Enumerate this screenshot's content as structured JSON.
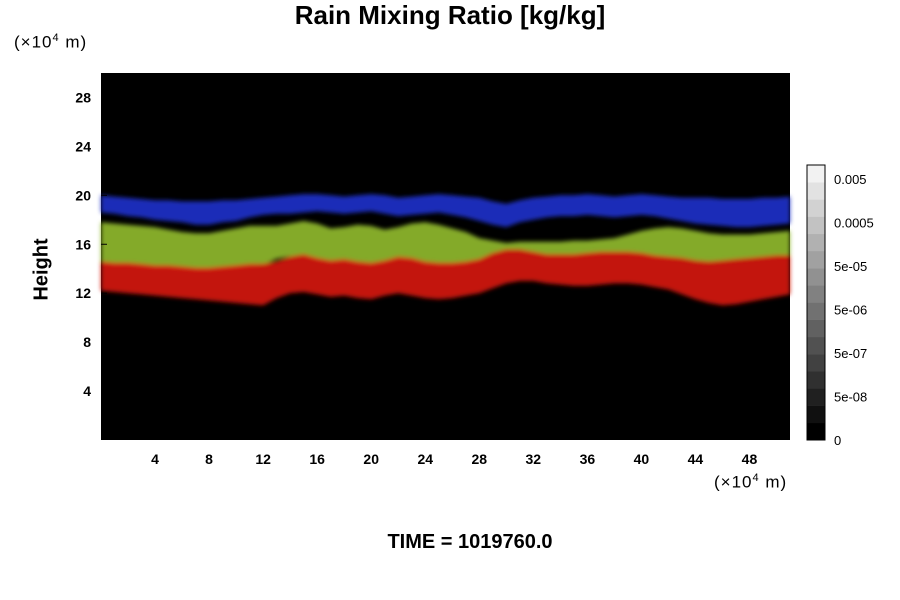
{
  "chart_data": {
    "type": "heatmap",
    "title": "Rain Mixing Ratio [kg/kg]",
    "ylabel": "Height",
    "y_unit": {
      "prefix": "(×10",
      "exp": "4",
      "suffix": " m)"
    },
    "x_unit": {
      "prefix": "(×10",
      "exp": "4",
      "suffix": " m)"
    },
    "xlim": [
      0,
      51
    ],
    "ylim": [
      0,
      30
    ],
    "x_ticks": [
      4,
      8,
      12,
      16,
      20,
      24,
      28,
      32,
      36,
      40,
      44,
      48
    ],
    "y_ticks": [
      4,
      8,
      12,
      16,
      20,
      24,
      28
    ],
    "background_color": "#000000",
    "layers": [
      {
        "color": "#1e2fc8",
        "bottom": [
          18.6,
          18.5,
          18.3,
          18.2,
          18.0,
          17.9,
          17.8,
          17.6,
          17.6,
          17.8,
          17.9,
          18.2,
          18.4,
          18.5,
          18.5,
          18.6,
          18.7,
          18.6,
          18.5,
          18.6,
          18.7,
          18.5,
          18.3,
          18.4,
          18.5,
          18.6,
          18.4,
          18.2,
          17.9,
          17.6,
          17.4,
          17.8,
          18.0,
          18.2,
          18.3,
          18.3,
          18.4,
          18.3,
          18.2,
          18.3,
          18.4,
          18.3,
          18.1,
          17.9,
          17.7,
          17.6,
          17.5,
          17.4,
          17.4,
          17.5,
          17.6,
          17.7
        ],
        "top": [
          20.0,
          19.9,
          19.8,
          19.7,
          19.6,
          19.6,
          19.5,
          19.5,
          19.5,
          19.6,
          19.6,
          19.7,
          19.8,
          19.9,
          20.0,
          20.1,
          20.1,
          20.0,
          19.9,
          20.0,
          20.1,
          20.0,
          19.8,
          19.9,
          20.0,
          20.1,
          20.0,
          19.9,
          19.8,
          19.5,
          19.3,
          19.6,
          19.8,
          19.9,
          20.0,
          20.0,
          20.1,
          20.0,
          19.9,
          20.0,
          20.1,
          20.0,
          19.9,
          19.8,
          19.8,
          19.8,
          19.7,
          19.7,
          19.7,
          19.8,
          19.8,
          19.9
        ]
      },
      {
        "color": "#8fb82a",
        "bottom": [
          14.3,
          14.2,
          14.2,
          14.1,
          14.0,
          14.0,
          13.9,
          13.8,
          13.8,
          13.9,
          14.0,
          14.1,
          14.3,
          14.8,
          15.0,
          15.0,
          14.6,
          14.4,
          14.5,
          14.3,
          14.2,
          14.4,
          14.7,
          14.6,
          14.3,
          14.2,
          14.2,
          14.3,
          14.6,
          15.2,
          15.5,
          15.5,
          15.2,
          15.0,
          15.0,
          15.0,
          15.1,
          15.2,
          15.2,
          15.2,
          15.1,
          14.9,
          14.8,
          14.8,
          14.6,
          14.5,
          14.6,
          14.7,
          14.8,
          14.9,
          15.0,
          15.0
        ],
        "top": [
          17.8,
          17.7,
          17.6,
          17.5,
          17.4,
          17.2,
          17.0,
          16.9,
          16.9,
          17.1,
          17.3,
          17.5,
          17.5,
          17.5,
          17.7,
          17.9,
          17.7,
          17.3,
          17.4,
          17.6,
          17.5,
          17.2,
          17.4,
          17.7,
          17.8,
          17.6,
          17.3,
          17.0,
          16.5,
          16.3,
          16.1,
          16.2,
          16.2,
          16.2,
          16.2,
          16.3,
          16.3,
          16.4,
          16.5,
          16.8,
          17.1,
          17.3,
          17.4,
          17.3,
          17.1,
          16.9,
          16.8,
          16.8,
          16.8,
          16.9,
          17.0,
          17.1
        ]
      },
      {
        "color": "#d41410",
        "bottom": [
          12.2,
          12.1,
          12.0,
          11.9,
          11.8,
          11.7,
          11.6,
          11.5,
          11.4,
          11.3,
          11.2,
          11.1,
          11.0,
          11.6,
          12.0,
          12.1,
          11.9,
          11.7,
          11.8,
          11.6,
          11.5,
          11.8,
          12.0,
          11.8,
          11.6,
          11.5,
          11.6,
          11.8,
          12.0,
          12.4,
          12.8,
          13.0,
          13.0,
          12.8,
          12.7,
          12.6,
          12.6,
          12.7,
          12.8,
          12.8,
          12.7,
          12.5,
          12.3,
          11.9,
          11.5,
          11.2,
          11.0,
          11.1,
          11.3,
          11.5,
          11.7,
          11.9
        ],
        "top": [
          14.6,
          14.5,
          14.5,
          14.4,
          14.3,
          14.3,
          14.2,
          14.1,
          14.1,
          14.2,
          14.3,
          14.4,
          14.4,
          14.6,
          15.0,
          15.2,
          14.9,
          14.7,
          14.8,
          14.6,
          14.5,
          14.7,
          15.0,
          14.9,
          14.6,
          14.5,
          14.5,
          14.6,
          14.8,
          15.3,
          15.6,
          15.6,
          15.4,
          15.2,
          15.2,
          15.2,
          15.3,
          15.4,
          15.4,
          15.4,
          15.3,
          15.1,
          15.0,
          14.9,
          14.7,
          14.6,
          14.7,
          14.8,
          14.9,
          15.0,
          15.1,
          15.1
        ]
      }
    ],
    "colorbar": {
      "labels": [
        "0.005",
        "0.0005",
        "5e-05",
        "5e-06",
        "5e-07",
        "5e-08",
        "0"
      ],
      "levels": 16,
      "color_low": "#000000",
      "color_high": "#f2f2f2"
    }
  },
  "footer": {
    "prefix": "TIME = ",
    "value": "1019760.0"
  }
}
